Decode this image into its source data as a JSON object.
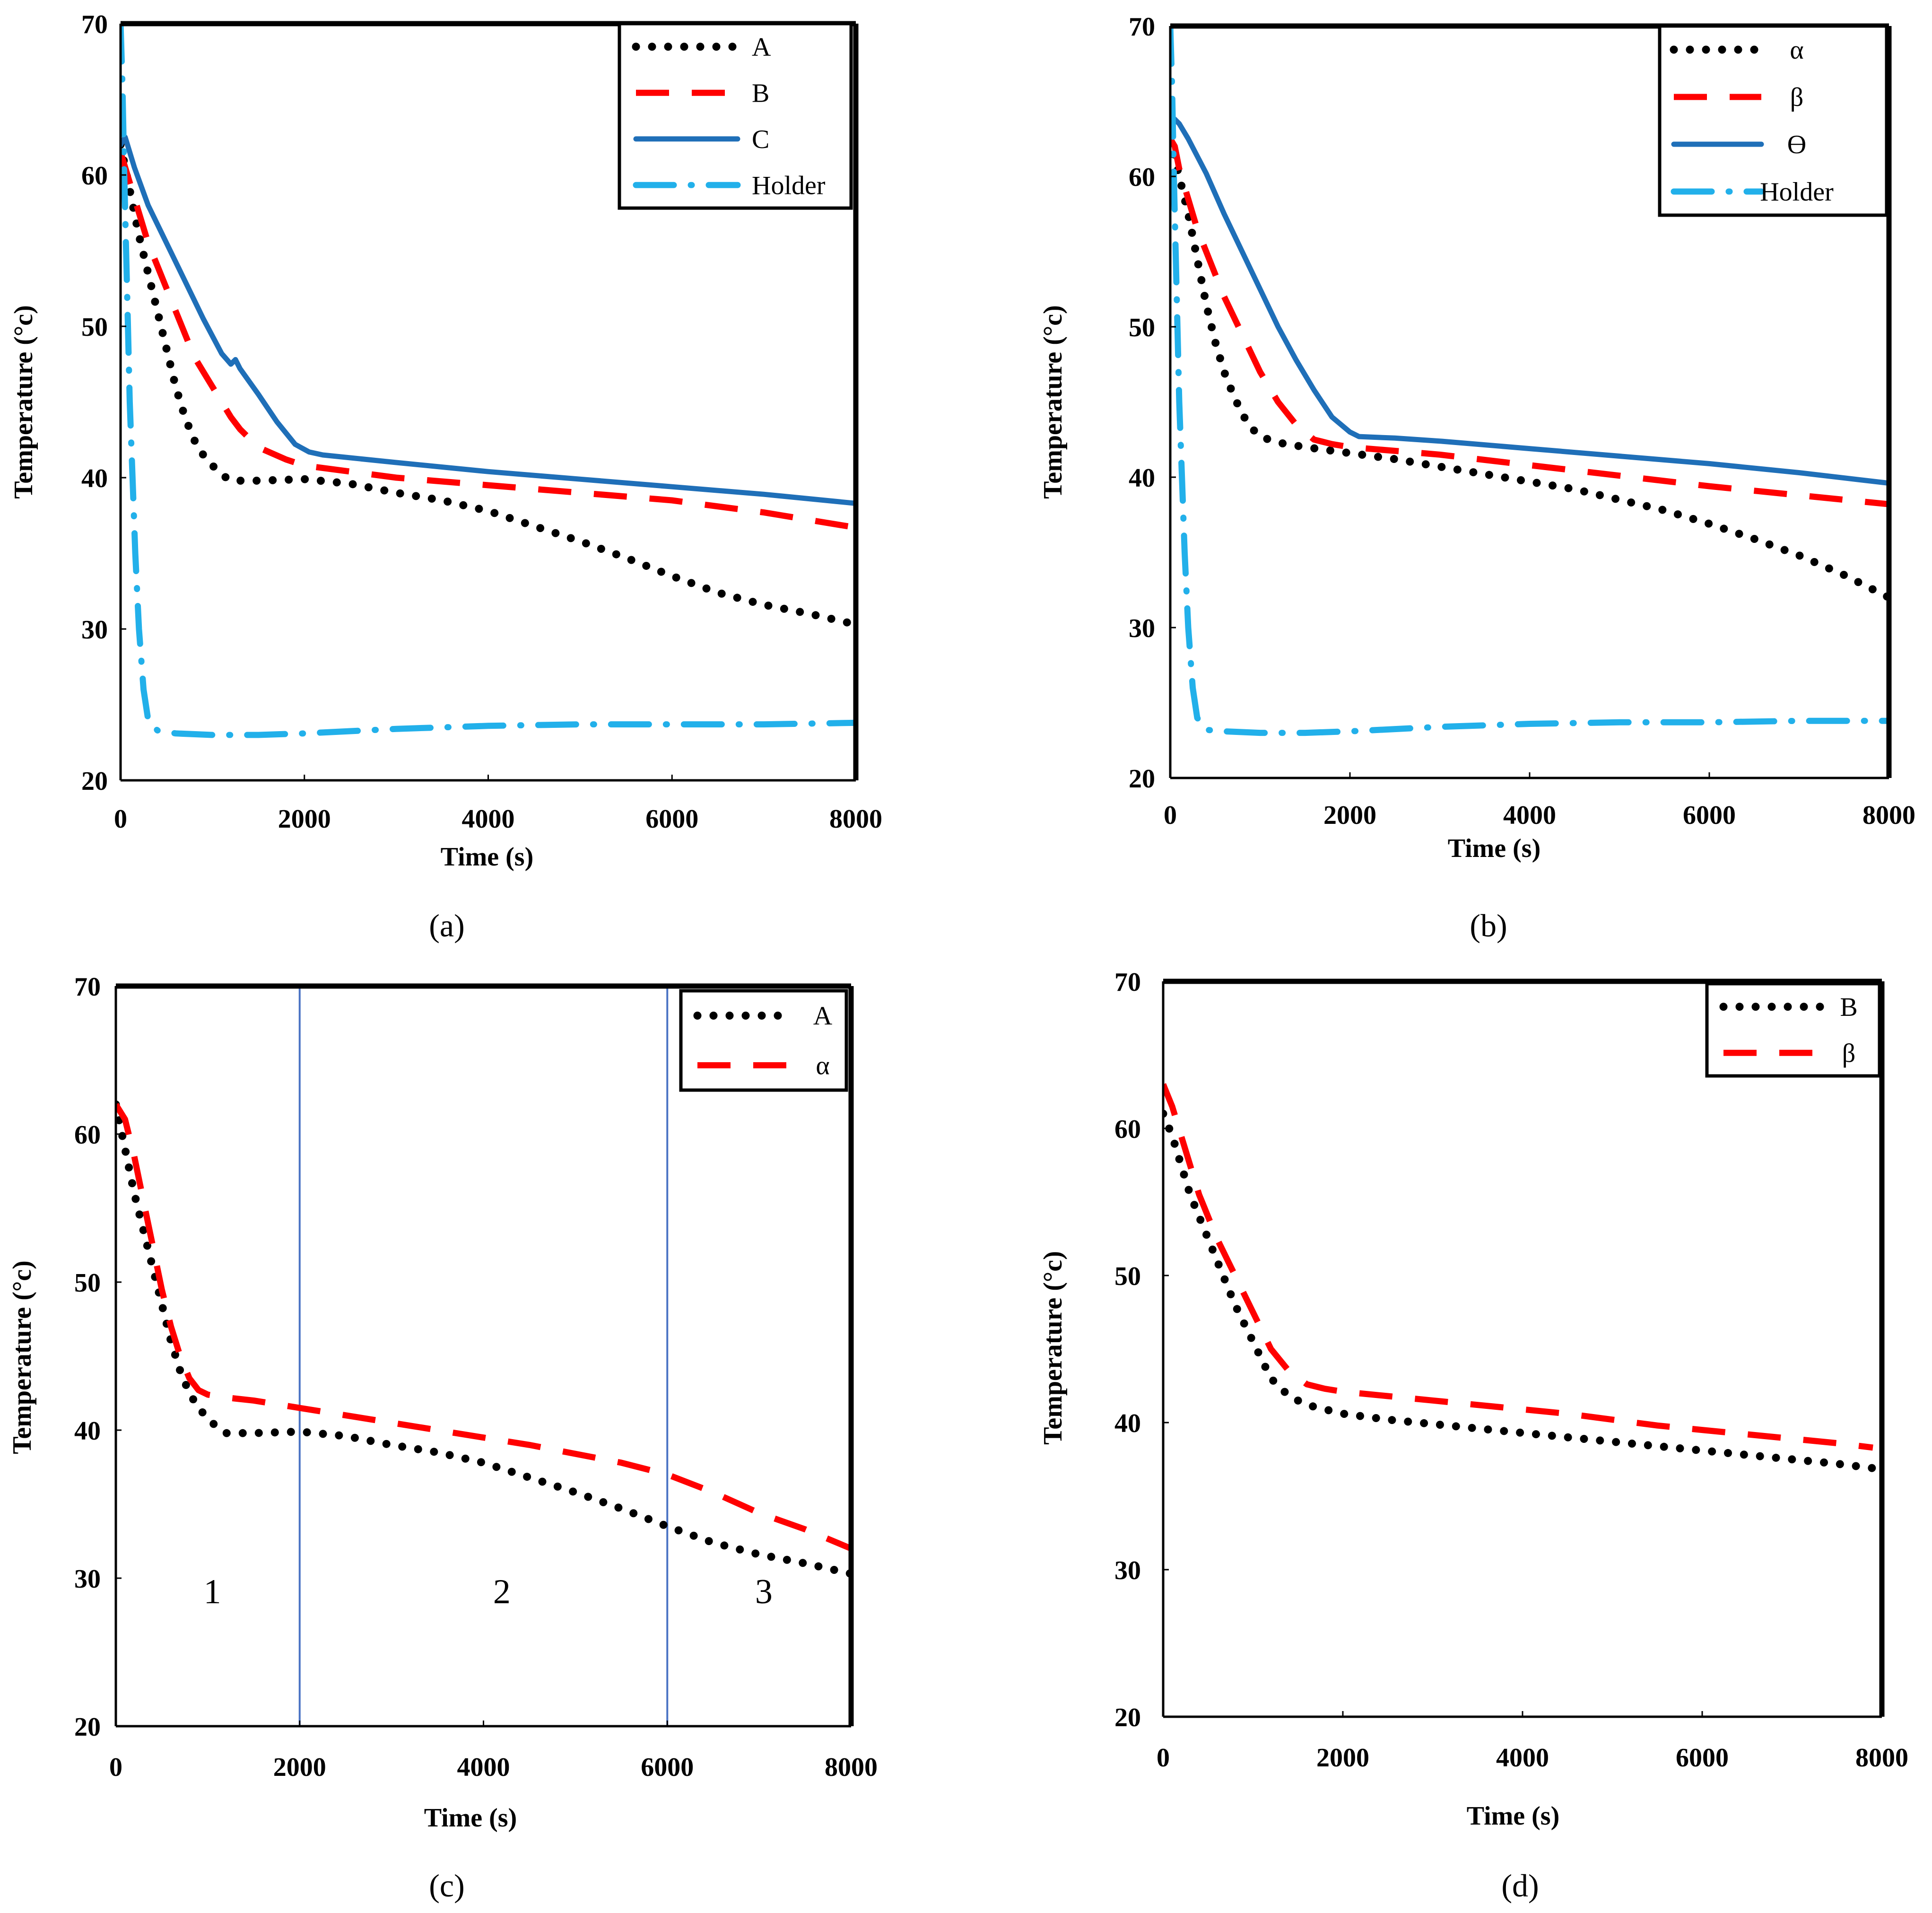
{
  "colors": {
    "black": "#000000",
    "red": "#ff0000",
    "blue": "#1f6fb8",
    "light_blue": "#22b0ea",
    "zone_line": "#4a73c4"
  },
  "chart_data": [
    {
      "id": "a",
      "panel_label_text": "(a)",
      "type": "line",
      "xlabel": "Time (s)",
      "ylabel": "Temperature (°c)",
      "xlim": [
        0,
        8000
      ],
      "ylim": [
        20,
        70
      ],
      "xticks": [
        0,
        2000,
        4000,
        6000,
        8000
      ],
      "yticks": [
        20,
        30,
        40,
        50,
        60,
        70
      ],
      "series": [
        {
          "name": "A",
          "style": "dotted",
          "color_key": "black",
          "x": [
            0,
            100,
            200,
            300,
            400,
            500,
            600,
            700,
            800,
            900,
            1000,
            1100,
            1200,
            1500,
            2000,
            2500,
            3000,
            3500,
            4000,
            4500,
            5000,
            5500,
            6000,
            6500,
            7000,
            7500,
            8000
          ],
          "y": [
            62,
            59,
            56,
            53.5,
            51,
            48.5,
            46,
            44,
            42.5,
            41.5,
            40.8,
            40.2,
            39.8,
            39.8,
            39.9,
            39.6,
            39,
            38.5,
            37.8,
            36.8,
            35.8,
            34.7,
            33.5,
            32.4,
            31.6,
            31,
            30.3
          ]
        },
        {
          "name": "B",
          "style": "dashed",
          "color_key": "red",
          "x": [
            0,
            100,
            200,
            300,
            400,
            500,
            600,
            700,
            800,
            900,
            1000,
            1100,
            1200,
            1300,
            1500,
            1800,
            2000,
            2500,
            3000,
            4000,
            5000,
            6000,
            7000,
            8000
          ],
          "y": [
            61.5,
            59.5,
            57.5,
            55.5,
            54,
            52.5,
            51,
            49.5,
            48,
            47,
            46,
            45,
            44,
            43.2,
            42,
            41.2,
            40.8,
            40.4,
            40,
            39.5,
            39,
            38.5,
            37.7,
            36.7
          ]
        },
        {
          "name": "C",
          "style": "solid",
          "color_key": "blue",
          "x": [
            0,
            50,
            150,
            300,
            500,
            700,
            900,
            1100,
            1200,
            1250,
            1300,
            1500,
            1700,
            1900,
            2050,
            2200,
            3000,
            4000,
            5000,
            6000,
            7000,
            8000
          ],
          "y": [
            62,
            62.5,
            60.5,
            58,
            55.5,
            53,
            50.5,
            48.2,
            47.5,
            47.8,
            47.2,
            45.5,
            43.7,
            42.2,
            41.7,
            41.5,
            41,
            40.4,
            39.9,
            39.4,
            38.9,
            38.3
          ]
        },
        {
          "name": "Holder",
          "style": "dashdot",
          "color_key": "light_blue",
          "x": [
            0,
            20,
            40,
            60,
            80,
            100,
            130,
            160,
            200,
            250,
            300,
            400,
            600,
            1000,
            1500,
            2000,
            3000,
            4000,
            5000,
            6000,
            7000,
            8000
          ],
          "y": [
            70,
            66,
            60,
            55,
            50,
            45,
            40,
            35,
            30,
            26,
            24,
            23.3,
            23.1,
            23,
            23,
            23.1,
            23.4,
            23.6,
            23.7,
            23.7,
            23.7,
            23.8
          ]
        }
      ]
    },
    {
      "id": "b",
      "panel_label_text": "(b)",
      "type": "line",
      "xlabel": "Time (s)",
      "ylabel": "Temperature (°c)",
      "xlim": [
        0,
        8000
      ],
      "ylim": [
        20,
        70
      ],
      "xticks": [
        0,
        2000,
        4000,
        6000,
        8000
      ],
      "yticks": [
        20,
        30,
        40,
        50,
        60,
        70
      ],
      "series": [
        {
          "name": "α",
          "style": "dotted",
          "color_key": "black",
          "x": [
            0,
            100,
            200,
            300,
            400,
            500,
            600,
            700,
            800,
            900,
            1000,
            1200,
            1500,
            2000,
            2500,
            3000,
            3500,
            4000,
            4500,
            5000,
            5500,
            6000,
            6500,
            7000,
            7500,
            8000
          ],
          "y": [
            62.5,
            60,
            57.5,
            54.5,
            51.5,
            49,
            47,
            45.5,
            44.2,
            43.3,
            42.7,
            42.3,
            42,
            41.6,
            41.2,
            40.7,
            40.2,
            39.7,
            39.2,
            38.5,
            37.8,
            36.9,
            35.9,
            34.8,
            33.5,
            32
          ]
        },
        {
          "name": "β",
          "style": "dashed",
          "color_key": "red",
          "x": [
            0,
            50,
            100,
            200,
            300,
            400,
            600,
            800,
            1000,
            1200,
            1400,
            1600,
            1800,
            2000,
            3000,
            4000,
            5000,
            6000,
            7000,
            8000
          ],
          "y": [
            62.5,
            62,
            60.5,
            58.5,
            56.5,
            55,
            52,
            49.5,
            47,
            45,
            43.5,
            42.5,
            42.2,
            42,
            41.5,
            40.8,
            40.1,
            39.4,
            38.8,
            38.2
          ]
        },
        {
          "name": "ϴ",
          "style": "solid",
          "color_key": "blue",
          "x": [
            0,
            50,
            100,
            200,
            400,
            600,
            800,
            1000,
            1200,
            1400,
            1600,
            1800,
            2000,
            2100,
            2500,
            3000,
            4000,
            5000,
            6000,
            7000,
            8000
          ],
          "y": [
            63.2,
            63.8,
            63.5,
            62.5,
            60.2,
            57.5,
            55,
            52.5,
            50,
            47.8,
            45.8,
            44,
            43,
            42.7,
            42.6,
            42.4,
            41.9,
            41.4,
            40.9,
            40.3,
            39.6
          ]
        },
        {
          "name": "Holder",
          "style": "dashdot",
          "color_key": "light_blue",
          "x": [
            0,
            20,
            40,
            60,
            80,
            100,
            130,
            160,
            200,
            250,
            300,
            400,
            600,
            1000,
            1500,
            2000,
            3000,
            4000,
            5000,
            6000,
            7000,
            8000
          ],
          "y": [
            70,
            66,
            60,
            55,
            50,
            45,
            40,
            35,
            30,
            26,
            24,
            23.2,
            23.1,
            23,
            23,
            23.1,
            23.4,
            23.6,
            23.7,
            23.7,
            23.8,
            23.8
          ]
        }
      ]
    },
    {
      "id": "c",
      "panel_label_text": "(c)",
      "type": "line",
      "xlabel": "Time (s)",
      "ylabel": "Temperature (°c)",
      "xlim": [
        0,
        8000
      ],
      "ylim": [
        20,
        70
      ],
      "xticks": [
        0,
        2000,
        4000,
        6000,
        8000
      ],
      "yticks": [
        20,
        30,
        40,
        50,
        60,
        70
      ],
      "vlines": [
        2000,
        6000
      ],
      "annotations": [
        {
          "text": "1",
          "x": 1050,
          "y": 28.3
        },
        {
          "text": "2",
          "x": 4200,
          "y": 28.3
        },
        {
          "text": "3",
          "x": 7050,
          "y": 28.3
        }
      ],
      "series": [
        {
          "name": "A",
          "style": "dotted",
          "color_key": "black",
          "x": [
            0,
            100,
            200,
            300,
            400,
            500,
            600,
            700,
            800,
            900,
            1000,
            1100,
            1200,
            1500,
            2000,
            2500,
            3000,
            3500,
            4000,
            4500,
            5000,
            5500,
            6000,
            6500,
            7000,
            7500,
            8000
          ],
          "y": [
            62,
            59,
            56,
            53.5,
            51,
            48.5,
            46,
            44,
            42.5,
            41.5,
            40.8,
            40.2,
            39.8,
            39.8,
            39.9,
            39.6,
            39,
            38.5,
            37.8,
            36.8,
            35.8,
            34.7,
            33.5,
            32.4,
            31.6,
            31,
            30.3
          ]
        },
        {
          "name": "α",
          "style": "dashed",
          "color_key": "red",
          "x": [
            0,
            100,
            200,
            300,
            400,
            500,
            600,
            700,
            800,
            900,
            1000,
            1200,
            1500,
            2000,
            2500,
            3000,
            3500,
            4000,
            4500,
            5000,
            5500,
            6000,
            6500,
            7000,
            7500,
            8000
          ],
          "y": [
            62,
            61,
            58.5,
            55.5,
            52.5,
            49.5,
            47,
            45,
            43.5,
            42.7,
            42.4,
            42.2,
            42,
            41.5,
            41,
            40.5,
            40,
            39.5,
            39,
            38.4,
            37.8,
            37,
            35.8,
            34.4,
            33.3,
            32
          ]
        }
      ]
    },
    {
      "id": "d",
      "panel_label_text": "(d)",
      "type": "line",
      "xlabel": "Time (s)",
      "ylabel": "Temperature (°c)",
      "xlim": [
        0,
        8000
      ],
      "ylim": [
        20,
        70
      ],
      "xticks": [
        0,
        2000,
        4000,
        6000,
        8000
      ],
      "yticks": [
        20,
        30,
        40,
        50,
        60,
        70
      ],
      "series": [
        {
          "name": "B",
          "style": "dotted",
          "color_key": "black",
          "x": [
            0,
            100,
            200,
            300,
            400,
            600,
            800,
            1000,
            1200,
            1400,
            1600,
            1800,
            2000,
            2500,
            3000,
            3500,
            4000,
            4500,
            5000,
            5500,
            6000,
            6500,
            7000,
            7500,
            7900
          ],
          "y": [
            61,
            59.5,
            57.5,
            55.5,
            54,
            51,
            48,
            45.5,
            43,
            41.8,
            41.2,
            40.9,
            40.6,
            40.2,
            39.9,
            39.6,
            39.3,
            39,
            38.7,
            38.4,
            38.1,
            37.8,
            37.5,
            37.2,
            36.9
          ]
        },
        {
          "name": "β",
          "style": "dashed",
          "color_key": "red",
          "x": [
            0,
            100,
            200,
            300,
            400,
            600,
            800,
            1000,
            1200,
            1400,
            1600,
            1800,
            2000,
            2500,
            3000,
            3500,
            4000,
            4500,
            5000,
            5500,
            6000,
            6500,
            7000,
            7500,
            7900
          ],
          "y": [
            63,
            61.5,
            59.5,
            57.5,
            55.5,
            52.5,
            50,
            47.5,
            45,
            43.5,
            42.6,
            42.3,
            42.1,
            41.8,
            41.5,
            41.2,
            40.9,
            40.6,
            40.2,
            39.8,
            39.5,
            39.2,
            38.9,
            38.6,
            38.3
          ]
        }
      ]
    }
  ]
}
